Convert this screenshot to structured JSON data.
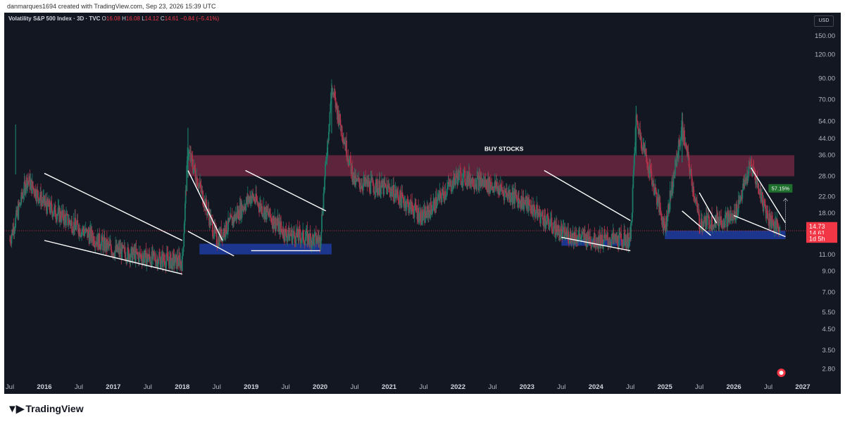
{
  "topbar": {
    "credit": "danmarques1694 created with TradingView.com, Sep 23, 2026 15:39 UTC"
  },
  "legend": {
    "symbol": "Volatility S&P 500 Index · 3D · TVC",
    "o_label": "O",
    "o": "16.08",
    "h_label": "H",
    "h": "16.08",
    "l_label": "L",
    "l": "14.12",
    "c_label": "C",
    "c": "14.61",
    "change": "−0.84 (−5.41%)"
  },
  "currency": "USD",
  "footer": {
    "brand": "TradingView",
    "logo_icon": "tradingview-logo-icon"
  },
  "colors": {
    "up": "#1b7b68",
    "down": "#b0324a",
    "background": "#131722",
    "resistance_zone": "#6b2740",
    "support_zone": "#1e3a9a",
    "price_tag": "#f23645"
  },
  "chart_data": {
    "type": "candlestick",
    "title": "Volatility S&P 500 Index",
    "y_scale": "log",
    "ylim": [
      2.5,
      185
    ],
    "y_ticks": [
      "150.00",
      "120.00",
      "90.00",
      "70.00",
      "54.00",
      "44.00",
      "36.00",
      "28.00",
      "22.00",
      "18.00",
      "11.00",
      "9.00",
      "7.00",
      "5.50",
      "4.50",
      "3.50",
      "2.80"
    ],
    "x_ticks": [
      "Jul",
      "2016",
      "Jul",
      "2017",
      "Jul",
      "2018",
      "Jul",
      "2019",
      "Jul",
      "2020",
      "Jul",
      "2021",
      "Jul",
      "2022",
      "Jul",
      "2023",
      "Jul",
      "2024",
      "Jul",
      "2025",
      "Jul",
      "2026",
      "Jul",
      "2027"
    ],
    "bold_x_ticks": [
      "2016",
      "2017",
      "2018",
      "2019",
      "2020",
      "2021",
      "2022",
      "2023",
      "2024",
      "2025",
      "2026",
      "2027"
    ],
    "grid": false,
    "series": [
      {
        "x": [
          "2015-07",
          "2015-10",
          "2016-01",
          "2016-07",
          "2017-01",
          "2017-07",
          "2018-01",
          "2018-02",
          "2018-07",
          "2019-01",
          "2019-07",
          "2020-01",
          "2020-03",
          "2020-07",
          "2021-01",
          "2021-07",
          "2022-01",
          "2022-07",
          "2023-01",
          "2023-07",
          "2024-01",
          "2024-07",
          "2024-08",
          "2025-01",
          "2025-04",
          "2025-07",
          "2026-01",
          "2026-04",
          "2026-07",
          "2026-09"
        ],
        "y": [
          13,
          27,
          20,
          15,
          11.5,
          10.5,
          10,
          38,
          13,
          22,
          14,
          13,
          80,
          26,
          24,
          17,
          28,
          25,
          20,
          14,
          13,
          13,
          55,
          15,
          50,
          16,
          17,
          32,
          17,
          14.61
        ]
      }
    ],
    "annotations": {
      "label": "BUY STOCKS",
      "percent_badge": "57.15%",
      "price_tags": [
        "14.73",
        "14.61",
        "1d 5h"
      ],
      "resistance_zone": [
        28,
        36
      ],
      "support_zones": [
        {
          "from": "2018-04",
          "to": "2020-03",
          "range": [
            11,
            12.5
          ]
        },
        {
          "from": "2023-07",
          "to": "2024-07",
          "range": [
            12.2,
            13.2
          ]
        },
        {
          "from": "2025-01",
          "to": "2026-10",
          "range": [
            13.2,
            14.6
          ]
        }
      ],
      "trendlines": [
        {
          "from": [
            "2016-01",
            29
          ],
          "to": [
            "2018-01",
            13
          ]
        },
        {
          "from": [
            "2016-01",
            13
          ],
          "to": [
            "2018-01",
            8.7
          ]
        },
        {
          "from": [
            "2018-02",
            30
          ],
          "to": [
            "2018-08",
            13
          ]
        },
        {
          "from": [
            "2018-02",
            14.5
          ],
          "to": [
            "2018-10",
            10.8
          ]
        },
        {
          "from": [
            "2018-12",
            30
          ],
          "to": [
            "2020-02",
            18.5
          ]
        },
        {
          "from": [
            "2019-01",
            11.5
          ],
          "to": [
            "2020-01",
            11.5
          ]
        },
        {
          "from": [
            "2023-04",
            30
          ],
          "to": [
            "2024-07",
            16.5
          ]
        },
        {
          "from": [
            "2023-07",
            13.5
          ],
          "to": [
            "2024-07",
            11.5
          ]
        },
        {
          "from": [
            "2025-04",
            18.5
          ],
          "to": [
            "2025-09",
            13.8
          ]
        },
        {
          "from": [
            "2025-07",
            23
          ],
          "to": [
            "2025-10",
            16
          ]
        },
        {
          "from": [
            "2026-01",
            17.5
          ],
          "to": [
            "2026-10",
            13.6
          ]
        },
        {
          "from": [
            "2026-04",
            31
          ],
          "to": [
            "2026-10",
            16
          ]
        }
      ]
    }
  }
}
